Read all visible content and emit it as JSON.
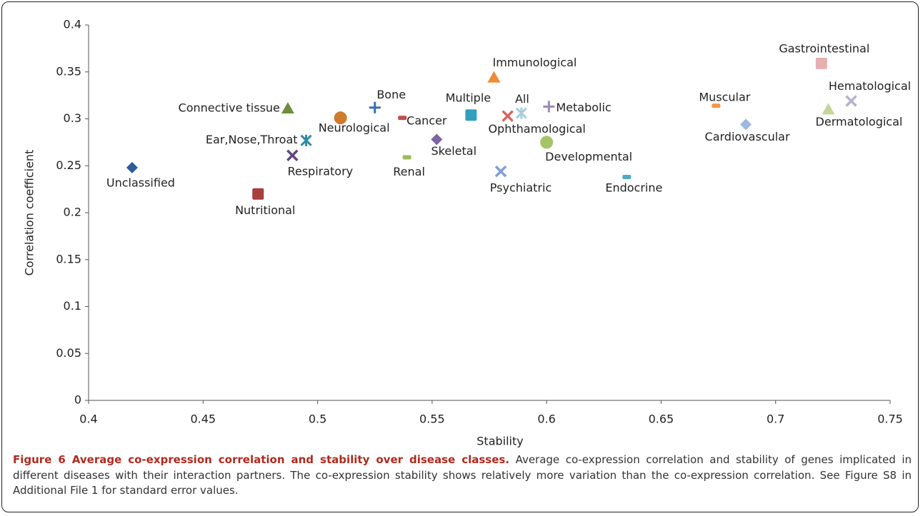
{
  "chart_data": {
    "type": "scatter",
    "x_label": "Stability",
    "y_label": "Correlation coefficient",
    "xlim": [
      0.4,
      0.75
    ],
    "xticks": [
      0.4,
      0.45,
      0.5,
      0.55,
      0.6,
      0.65,
      0.7,
      0.75
    ],
    "ylim": [
      0,
      0.4
    ],
    "yticks": [
      0,
      0.05,
      0.1,
      0.15,
      0.2,
      0.25,
      0.3,
      0.35,
      0.4
    ],
    "grid": false,
    "series": [
      {
        "name": "Unclassified",
        "color": "#2e5c9a",
        "marker": "diamond",
        "x": [
          0.419
        ],
        "values": [
          0.248
        ]
      },
      {
        "name": "Nutritional",
        "color": "#a5403d",
        "marker": "square",
        "x": [
          0.474
        ],
        "values": [
          0.22
        ]
      },
      {
        "name": "Connective tissue",
        "color": "#6e8f3a",
        "marker": "triangle",
        "x": [
          0.487
        ],
        "values": [
          0.311
        ]
      },
      {
        "name": "Respiratory",
        "color": "#604a7b",
        "marker": "x",
        "x": [
          0.489
        ],
        "values": [
          0.261
        ]
      },
      {
        "name": "Ear,Nose,Throat",
        "color": "#2a8ca3",
        "marker": "asterisk",
        "x": [
          0.495
        ],
        "values": [
          0.277
        ]
      },
      {
        "name": "Neurological",
        "color": "#d07a2b",
        "marker": "circle",
        "x": [
          0.51
        ],
        "values": [
          0.301
        ]
      },
      {
        "name": "Bone",
        "color": "#3b6db0",
        "marker": "plus",
        "x": [
          0.525
        ],
        "values": [
          0.312
        ]
      },
      {
        "name": "Cancer",
        "color": "#c0504d",
        "marker": "dash",
        "x": [
          0.537
        ],
        "values": [
          0.301
        ]
      },
      {
        "name": "Renal",
        "color": "#9bbb59",
        "marker": "dash",
        "x": [
          0.539
        ],
        "values": [
          0.259
        ]
      },
      {
        "name": "Skeletal",
        "color": "#8064a2",
        "marker": "diamond",
        "x": [
          0.552
        ],
        "values": [
          0.278
        ]
      },
      {
        "name": "Multiple",
        "color": "#31a0c0",
        "marker": "square",
        "x": [
          0.567
        ],
        "values": [
          0.304
        ]
      },
      {
        "name": "Immunological",
        "color": "#f08a35",
        "marker": "triangle",
        "x": [
          0.577
        ],
        "values": [
          0.344
        ]
      },
      {
        "name": "Psychiatric",
        "color": "#7f9fd6",
        "marker": "x",
        "x": [
          0.58
        ],
        "values": [
          0.244
        ]
      },
      {
        "name": "Ophthamological",
        "color": "#d9665e",
        "marker": "x",
        "x": [
          0.583
        ],
        "values": [
          0.303
        ]
      },
      {
        "name": "All",
        "color": "#a6cde2",
        "marker": "asterisk",
        "x": [
          0.589
        ],
        "values": [
          0.306
        ]
      },
      {
        "name": "Metabolic",
        "color": "#9a88b8",
        "marker": "plus",
        "x": [
          0.601
        ],
        "values": [
          0.313
        ]
      },
      {
        "name": "Developmental",
        "color": "#a5c46a",
        "marker": "circle",
        "x": [
          0.6
        ],
        "values": [
          0.275
        ]
      },
      {
        "name": "Endocrine",
        "color": "#4bacc6",
        "marker": "dash",
        "x": [
          0.635
        ],
        "values": [
          0.238
        ]
      },
      {
        "name": "Muscular",
        "color": "#f79646",
        "marker": "dash",
        "x": [
          0.674
        ],
        "values": [
          0.314
        ]
      },
      {
        "name": "Cardiovascular",
        "color": "#a0b8e0",
        "marker": "diamond",
        "x": [
          0.687
        ],
        "values": [
          0.294
        ]
      },
      {
        "name": "Gastrointestinal",
        "color": "#e6b0b0",
        "marker": "square",
        "x": [
          0.72
        ],
        "values": [
          0.359
        ]
      },
      {
        "name": "Dermatological",
        "color": "#c3d69b",
        "marker": "triangle",
        "x": [
          0.723
        ],
        "values": [
          0.31
        ]
      },
      {
        "name": "Hematological",
        "color": "#b8b0d0",
        "marker": "x",
        "x": [
          0.733
        ],
        "values": [
          0.319
        ]
      }
    ]
  },
  "caption": {
    "label": "Figure 6 Average co-expression correlation and stability over disease classes.",
    "text": "Average co-expression correlation and stability of genes implicated in different diseases with their interaction partners. The co-expression stability shows relatively more variation than the co-expression correlation. See Figure S8 in Additional File 1 for standard error values."
  }
}
